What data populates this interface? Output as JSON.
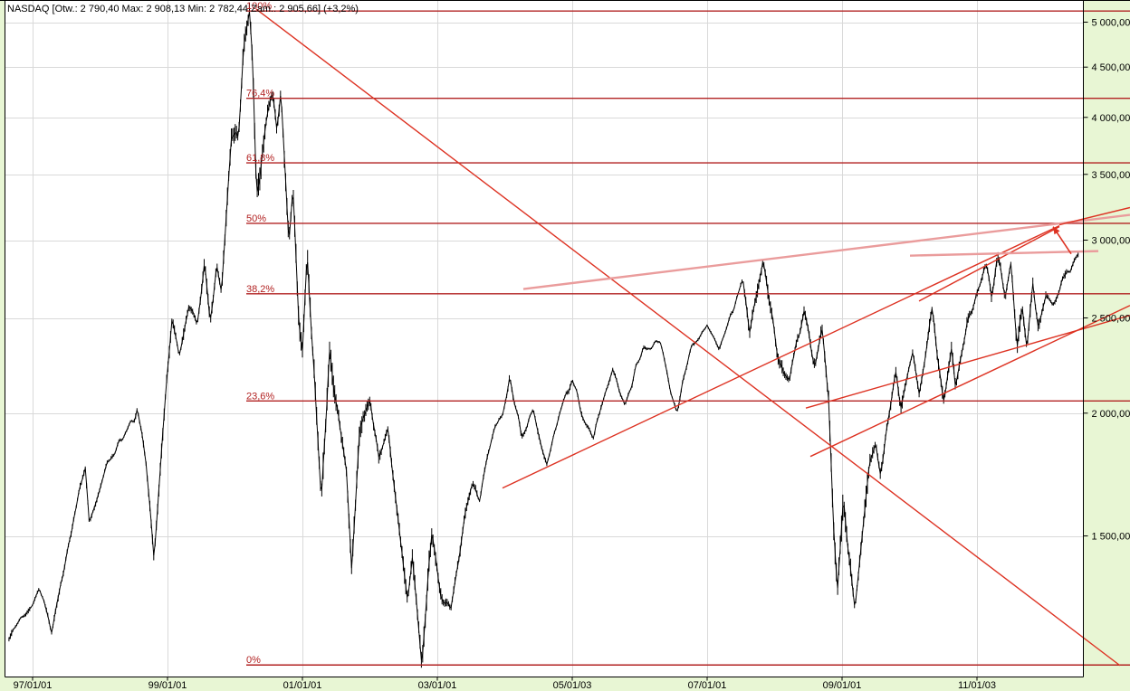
{
  "header": {
    "title_text": "NASDAQ [Otw.: 2 790,40  Max: 2 908,13  Min: 2 782,44  Zam.: 2 905,66] (+3,2%)",
    "symbol": "NASDAQ",
    "open_label": "Otw.:",
    "open": "2 790,40",
    "high_label": "Max:",
    "high": "2 908,13",
    "low_label": "Min:",
    "low": "2 782,44",
    "close_label": "Zam.:",
    "close": "2 905,66",
    "change": "(+3,2%)"
  },
  "colors": {
    "background": "#e8f6d4",
    "plot_bg": "#ffffff",
    "grid": "#d9d9d9",
    "axis": "#000000",
    "series": "#000000",
    "fib": "#b22222",
    "trend": "#dd3222",
    "trend_light": "#ea9c9c"
  },
  "chart_data": {
    "type": "line",
    "subtype": "weekly-high-low-bars",
    "title": "NASDAQ weekly chart with Fibonacci retracements and trendlines",
    "y_scale": "log",
    "grid": true,
    "legend": false,
    "x_axis_date_format": "YY/MM/DD",
    "x_range_years": [
      1996.65,
      2013.27
    ],
    "y_range_price": [
      1050,
      5400
    ],
    "y_ticks": [
      {
        "label": "5 000,00",
        "value": 5000
      },
      {
        "label": "4 500,00",
        "value": 4500
      },
      {
        "label": "4 000,00",
        "value": 4000
      },
      {
        "label": "3 500,00",
        "value": 3500
      },
      {
        "label": "3 000,00",
        "value": 3000
      },
      {
        "label": "2 500,00",
        "value": 2500
      },
      {
        "label": "2 000,00",
        "value": 2000
      },
      {
        "label": "1 500,00",
        "value": 1500
      }
    ],
    "x_ticks": [
      {
        "label": "97/01/01",
        "t": 1997.0
      },
      {
        "label": "99/01/01",
        "t": 1999.0
      },
      {
        "label": "01/01/01",
        "t": 2001.0
      },
      {
        "label": "03/01/01",
        "t": 2003.0
      },
      {
        "label": "05/01/03",
        "t": 2005.0
      },
      {
        "label": "07/01/01",
        "t": 2007.0
      },
      {
        "label": "09/01/01",
        "t": 2009.0
      },
      {
        "label": "11/01/03",
        "t": 2011.0
      }
    ],
    "fibonacci": {
      "low_price": 1108.49,
      "high_price": 5132.52,
      "start_t": 2000.168,
      "levels": [
        {
          "pct": "0%",
          "price": 1108.49
        },
        {
          "pct": "23,6%",
          "price": 2058.2
        },
        {
          "pct": "38,2%",
          "price": 2645.7
        },
        {
          "pct": "50%",
          "price": 3120.5
        },
        {
          "pct": "61,8%",
          "price": 3595.3
        },
        {
          "pct": "76,4%",
          "price": 4182.9
        },
        {
          "pct": "100%",
          "price": 5132.52
        }
      ]
    },
    "trendlines": [
      {
        "name": "downtrend-from-2000-peak",
        "from": [
          2000.315,
          5156
        ],
        "to": [
          2013.121,
          1107
        ],
        "style": "normal"
      },
      {
        "name": "long-rising-support-2003",
        "from": [
          2003.966,
          1678
        ],
        "to": [
          2012.221,
          3103
        ],
        "style": "normal"
      },
      {
        "name": "rising-wedge-lower-2010",
        "from": [
          2010.141,
          2601
        ],
        "to": [
          2012.221,
          3096
        ],
        "style": "normal"
      },
      {
        "name": "rising-support-2009",
        "from": [
          2008.463,
          2024
        ],
        "to": [
          2013.268,
          2515
        ],
        "style": "normal"
      },
      {
        "name": "broad-rising-channel-upper",
        "from": [
          2004.275,
          2675
        ],
        "to": [
          2013.268,
          3183
        ],
        "style": "light"
      },
      {
        "name": "resistance-2011-high",
        "from": [
          2010.007,
          2893
        ],
        "to": [
          2012.799,
          2924
        ],
        "style": "light"
      },
      {
        "name": "rising-support-2010",
        "from": [
          2008.53,
          1807
        ],
        "to": [
          2013.268,
          2574
        ],
        "style": "normal"
      },
      {
        "name": "apex-extension",
        "from": [
          2012.221,
          3110
        ],
        "to": [
          2013.268,
          3238
        ],
        "style": "normal"
      }
    ],
    "annotation_arrow": {
      "name": "breakout-target-arrow",
      "from": [
        2012.396,
        2905
      ],
      "to": [
        2012.128,
        3096
      ]
    },
    "series": [
      {
        "name": "NASDAQ weekly (approx. anchor points)",
        "interval": "weekly",
        "points": [
          [
            1996.65,
            1180
          ],
          [
            1996.8,
            1230
          ],
          [
            1997.0,
            1291
          ],
          [
            1997.1,
            1330
          ],
          [
            1997.28,
            1194
          ],
          [
            1997.45,
            1380
          ],
          [
            1997.6,
            1560
          ],
          [
            1997.78,
            1745
          ],
          [
            1997.84,
            1535
          ],
          [
            1997.95,
            1620
          ],
          [
            1998.1,
            1770
          ],
          [
            1998.35,
            1900
          ],
          [
            1998.55,
            2014
          ],
          [
            1998.68,
            1780
          ],
          [
            1998.8,
            1419
          ],
          [
            1998.92,
            1860
          ],
          [
            1999.0,
            2193
          ],
          [
            1999.07,
            2510
          ],
          [
            1999.17,
            2280
          ],
          [
            1999.32,
            2590
          ],
          [
            1999.44,
            2432
          ],
          [
            1999.55,
            2864
          ],
          [
            1999.63,
            2490
          ],
          [
            1999.73,
            2800
          ],
          [
            1999.8,
            2632
          ],
          [
            1999.95,
            3850
          ],
          [
            2000.05,
            3790
          ],
          [
            2000.13,
            4700
          ],
          [
            2000.2,
            5048
          ],
          [
            2000.215,
            5132
          ],
          [
            2000.26,
            4580
          ],
          [
            2000.32,
            3321
          ],
          [
            2000.45,
            3900
          ],
          [
            2000.55,
            4289
          ],
          [
            2000.62,
            3850
          ],
          [
            2000.68,
            4234
          ],
          [
            2000.8,
            3026
          ],
          [
            2000.86,
            3450
          ],
          [
            2000.95,
            2470
          ],
          [
            2001.0,
            2291
          ],
          [
            2001.07,
            2892
          ],
          [
            2001.18,
            2150
          ],
          [
            2001.28,
            1619
          ],
          [
            2001.4,
            2313
          ],
          [
            2001.55,
            1950
          ],
          [
            2001.65,
            1770
          ],
          [
            2001.73,
            1387
          ],
          [
            2001.85,
            1930
          ],
          [
            2002.0,
            2065
          ],
          [
            2002.13,
            1800
          ],
          [
            2002.26,
            1929
          ],
          [
            2002.42,
            1560
          ],
          [
            2002.56,
            1280
          ],
          [
            2002.63,
            1426
          ],
          [
            2002.77,
            1108
          ],
          [
            2002.92,
            1521
          ],
          [
            2003.05,
            1320
          ],
          [
            2003.2,
            1253
          ],
          [
            2003.42,
            1590
          ],
          [
            2003.52,
            1690
          ],
          [
            2003.63,
            1640
          ],
          [
            2003.8,
            1880
          ],
          [
            2003.97,
            2010
          ],
          [
            2004.07,
            2153
          ],
          [
            2004.25,
            1900
          ],
          [
            2004.42,
            2000
          ],
          [
            2004.62,
            1752
          ],
          [
            2004.8,
            1970
          ],
          [
            2005.0,
            2185
          ],
          [
            2005.13,
            2010
          ],
          [
            2005.32,
            1904
          ],
          [
            2005.6,
            2219
          ],
          [
            2005.78,
            2037
          ],
          [
            2006.0,
            2290
          ],
          [
            2006.3,
            2378
          ],
          [
            2006.42,
            2160
          ],
          [
            2006.55,
            2012
          ],
          [
            2006.78,
            2330
          ],
          [
            2007.0,
            2465
          ],
          [
            2007.18,
            2341
          ],
          [
            2007.53,
            2725
          ],
          [
            2007.63,
            2450
          ],
          [
            2007.83,
            2861
          ],
          [
            2007.95,
            2540
          ],
          [
            2008.07,
            2232
          ],
          [
            2008.22,
            2169
          ],
          [
            2008.44,
            2550
          ],
          [
            2008.6,
            2212
          ],
          [
            2008.7,
            2430
          ],
          [
            2008.8,
            2082
          ],
          [
            2008.87,
            1552
          ],
          [
            2008.93,
            1316
          ],
          [
            2009.02,
            1650
          ],
          [
            2009.1,
            1440
          ],
          [
            2009.19,
            1265
          ],
          [
            2009.4,
            1750
          ],
          [
            2009.5,
            1860
          ],
          [
            2009.57,
            1746
          ],
          [
            2009.8,
            2190
          ],
          [
            2009.87,
            2024
          ],
          [
            2010.05,
            2320
          ],
          [
            2010.14,
            2101
          ],
          [
            2010.33,
            2535
          ],
          [
            2010.5,
            2062
          ],
          [
            2010.62,
            2309
          ],
          [
            2010.68,
            2114
          ],
          [
            2010.85,
            2480
          ],
          [
            2011.0,
            2670
          ],
          [
            2011.13,
            2833
          ],
          [
            2011.22,
            2604
          ],
          [
            2011.3,
            2887
          ],
          [
            2011.42,
            2640
          ],
          [
            2011.5,
            2834
          ],
          [
            2011.6,
            2342
          ],
          [
            2011.67,
            2550
          ],
          [
            2011.74,
            2299
          ],
          [
            2011.83,
            2700
          ],
          [
            2011.91,
            2442
          ],
          [
            2012.02,
            2600
          ],
          [
            2012.12,
            2560
          ],
          [
            2012.25,
            2700
          ],
          [
            2012.38,
            2790
          ],
          [
            2012.5,
            2906
          ]
        ]
      }
    ]
  }
}
